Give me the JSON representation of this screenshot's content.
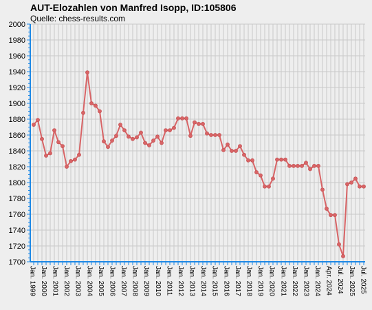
{
  "chart_data": {
    "type": "line",
    "title": "AUT-Elozahlen von Manfred Isopp, ID:105806",
    "subtitle": "Quelle: chess-results.com",
    "xlabel": "",
    "ylabel": "",
    "ylim": [
      1700,
      2000
    ],
    "yticks": [
      1700,
      1720,
      1740,
      1760,
      1780,
      1800,
      1820,
      1840,
      1860,
      1880,
      1900,
      1920,
      1940,
      1960,
      1980,
      2000
    ],
    "grid": true,
    "legend": "none",
    "colors": {
      "line": "#d86466",
      "grid": "#c8c8c8",
      "axis": "#1e88e5",
      "background": "#eeeeee"
    },
    "x_tick_labels": [
      "Jan. 1999",
      "Jan. 2000",
      "Jan. 2001",
      "Jan. 2002",
      "Jan. 2003",
      "Jan. 2004",
      "Jan. 2005",
      "Jan. 2006",
      "Jan. 2007",
      "Jan. 2008",
      "Jan. 2009",
      "Jan. 2010",
      "Jan. 2011",
      "Jan. 2012",
      "Jan. 2013",
      "Jan. 2014",
      "Jan. 2015",
      "Jan. 2016",
      "Jan. 2017",
      "Jan. 2018",
      "Jan. 2019",
      "Jan. 2020",
      "Jan. 2021",
      "Jan. 2022",
      "Jan. 2023",
      "Jan. 2024",
      "Apr. 2024",
      "Jul. 2024",
      "Jan. 2025",
      "Jul. 2025"
    ],
    "series": [
      {
        "values": [
          1873,
          1879,
          1855,
          1834,
          1837,
          1866,
          1851,
          1846,
          1820,
          1827,
          1829,
          1835,
          1888,
          1939,
          1900,
          1897,
          1890,
          1852,
          1845,
          1853,
          1859,
          1873,
          1866,
          1858,
          1855,
          1857,
          1863,
          1850,
          1847,
          1853,
          1858,
          1850,
          1866,
          1866,
          1869,
          1881,
          1881,
          1881,
          1859,
          1876,
          1874,
          1874,
          1862,
          1860,
          1860,
          1860,
          1841,
          1848,
          1840,
          1840,
          1846,
          1835,
          1828,
          1828,
          1813,
          1809,
          1795,
          1795,
          1805,
          1829,
          1829,
          1829,
          1821,
          1821,
          1821,
          1821,
          1825,
          1817,
          1821,
          1821,
          1791,
          1767,
          1759,
          1759,
          1722,
          1707,
          1798,
          1800,
          1805,
          1795,
          1795
        ]
      }
    ]
  }
}
